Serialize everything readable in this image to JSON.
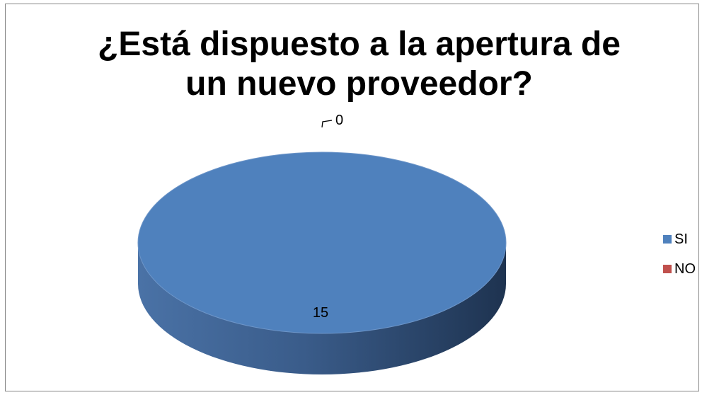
{
  "chart_data": {
    "type": "pie",
    "title_lines": [
      "¿Está dispuesto a la apertura de",
      "un nuevo proveedor?"
    ],
    "categories": [
      "SI",
      "NO"
    ],
    "values": [
      15,
      0
    ],
    "data_labels": [
      "15",
      "0"
    ],
    "colors": [
      "#4F81BD",
      "#C0504D"
    ],
    "legend_position": "right",
    "style": "3d"
  }
}
